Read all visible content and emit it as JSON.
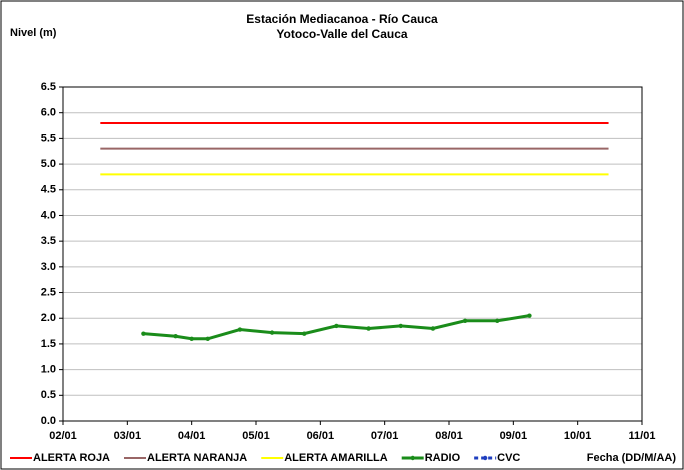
{
  "chart_data": {
    "type": "line",
    "title": [
      "Estación Mediacanoa - Río Cauca",
      "Yotoco-Valle del Cauca"
    ],
    "ylabel": "Nivel (m)",
    "xlabel": "Fecha (DD/M/AA)",
    "xlim": [
      2,
      11
    ],
    "ylim": [
      0,
      6.5
    ],
    "xticks": [
      {
        "value": 2,
        "label": "02/01"
      },
      {
        "value": 3,
        "label": "03/01"
      },
      {
        "value": 4,
        "label": "04/01"
      },
      {
        "value": 5,
        "label": "05/01"
      },
      {
        "value": 6,
        "label": "06/01"
      },
      {
        "value": 7,
        "label": "07/01"
      },
      {
        "value": 8,
        "label": "08/01"
      },
      {
        "value": 9,
        "label": "09/01"
      },
      {
        "value": 10,
        "label": "10/01"
      },
      {
        "value": 11,
        "label": "11/01"
      }
    ],
    "yticks": [
      {
        "value": 0,
        "label": "0.0"
      },
      0.5,
      {
        "value": 1,
        "label": "1.0"
      },
      1.5,
      {
        "value": 2,
        "label": "2.0"
      },
      2.5,
      {
        "value": 3,
        "label": "3.0"
      },
      3.5,
      {
        "value": 4,
        "label": "4.0"
      },
      4.5,
      {
        "value": 5,
        "label": "5.0"
      },
      5.5,
      {
        "value": 6,
        "label": "6.0"
      },
      6.5
    ],
    "grid": true,
    "legend": "bottom",
    "series": [
      {
        "name": "ALERTA ROJA",
        "color": "#ff0000",
        "x": [
          2.58,
          10.48
        ],
        "values": [
          5.8,
          5.8
        ]
      },
      {
        "name": "ALERTA NARANJA",
        "color": "#996666",
        "x": [
          2.58,
          10.48
        ],
        "values": [
          5.3,
          5.3
        ]
      },
      {
        "name": "ALERTA AMARILLA",
        "color": "#ffff00",
        "x": [
          2.58,
          10.48
        ],
        "values": [
          4.8,
          4.8
        ]
      },
      {
        "name": "RADIO",
        "color": "#1a8c1a",
        "markers": true,
        "x": [
          3.25,
          3.75,
          4.0,
          4.25,
          4.75,
          5.25,
          5.75,
          6.25,
          6.75,
          7.25,
          7.75,
          8.25,
          8.75,
          9.25
        ],
        "values": [
          1.7,
          1.65,
          1.6,
          1.6,
          1.78,
          1.72,
          1.7,
          1.85,
          1.8,
          1.85,
          1.8,
          1.95,
          1.95,
          2.05
        ]
      },
      {
        "name": "CVC",
        "color": "#1f3fbf",
        "markers": true,
        "dashed": true,
        "x": [],
        "values": []
      }
    ]
  }
}
